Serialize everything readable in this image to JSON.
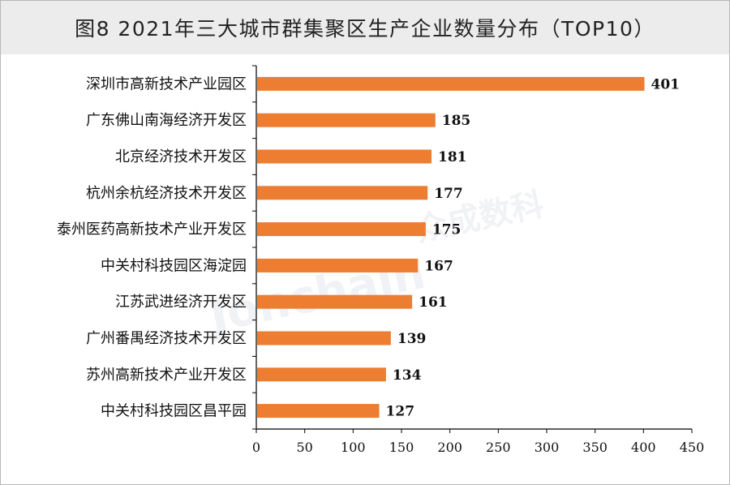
{
  "title": "图8  2021年三大城市群集聚区生产企业数量分布（TOP10）",
  "watermark": {
    "text": "Jonchain",
    "cn_text": "众成数科"
  },
  "colors": {
    "bar": "#ed7d31",
    "axis": "#000000"
  },
  "chart_data": {
    "type": "bar",
    "orientation": "horizontal",
    "title": "图8  2021年三大城市群集聚区生产企业数量分布（TOP10）",
    "categories": [
      "深圳市高新技术产业园区",
      "广东佛山南海经济开发区",
      "北京经济技术开发区",
      "杭州余杭经济技术开发区",
      "泰州医药高新技术产业开发区",
      "中关村科技园区海淀园",
      "江苏武进经济开发区",
      "广州番禺经济技术开发区",
      "苏州高新技术产业开发区",
      "中关村科技园区昌平园"
    ],
    "values": [
      401,
      185,
      181,
      177,
      175,
      167,
      161,
      139,
      134,
      127
    ],
    "xlim": [
      0,
      450
    ],
    "xticks": [
      "0",
      "50",
      "100",
      "150",
      "200",
      "250",
      "300",
      "350",
      "400",
      "450"
    ],
    "xlabel": "",
    "ylabel": "",
    "grid": false,
    "legend": "none"
  }
}
